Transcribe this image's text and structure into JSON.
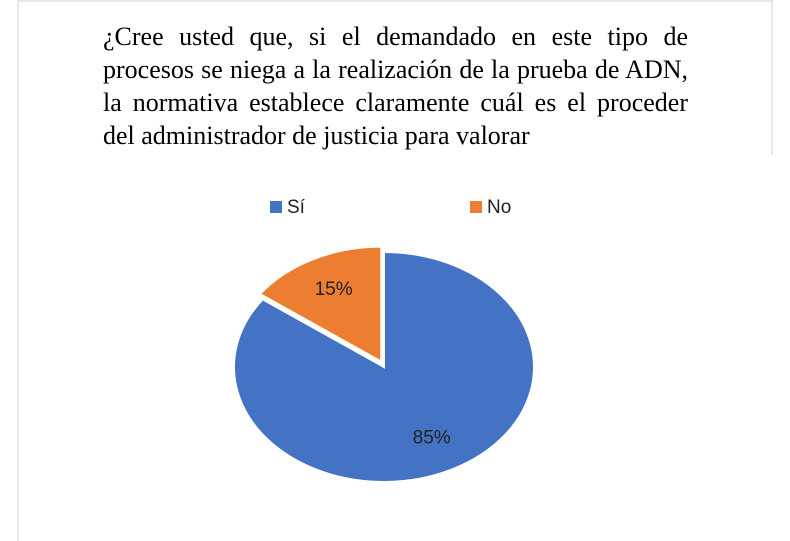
{
  "chart_data": {
    "type": "pie",
    "title": "¿Cree usted que, si el demandado en este tipo de procesos se niega a la realización de la prueba de ADN, la normativa establece claramente cuál es el proceder del administrador de justicia para valorar",
    "categories": [
      "Sí",
      "No"
    ],
    "values": [
      85,
      15
    ],
    "value_labels": [
      "85%",
      "15%"
    ],
    "colors": [
      "#4472c4",
      "#ed7d31"
    ],
    "legend": "top"
  }
}
